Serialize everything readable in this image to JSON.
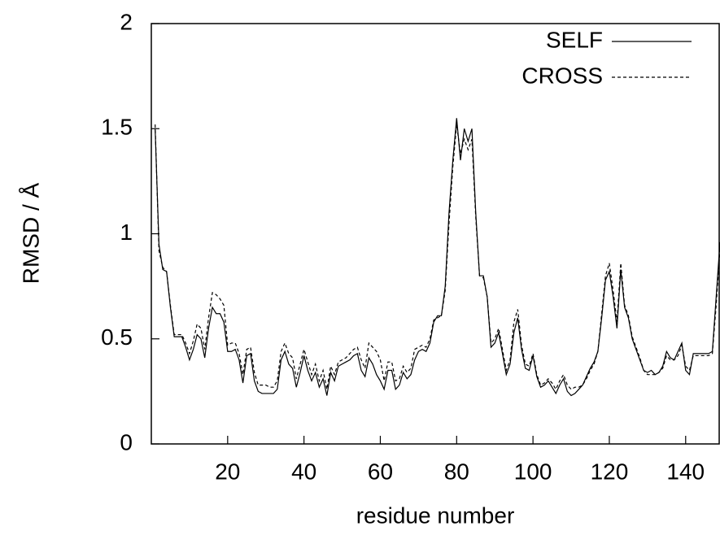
{
  "chart_data": {
    "type": "line",
    "x_label": "residue number",
    "y_label": "RMSD / Å",
    "x": [
      1,
      2,
      3,
      4,
      5,
      6,
      7,
      8,
      9,
      10,
      11,
      12,
      13,
      14,
      15,
      16,
      17,
      18,
      19,
      20,
      21,
      22,
      23,
      24,
      25,
      26,
      27,
      28,
      29,
      30,
      31,
      32,
      33,
      34,
      35,
      36,
      37,
      38,
      39,
      40,
      41,
      42,
      43,
      44,
      45,
      46,
      47,
      48,
      49,
      50,
      51,
      52,
      53,
      54,
      55,
      56,
      57,
      58,
      59,
      60,
      61,
      62,
      63,
      64,
      65,
      66,
      67,
      68,
      69,
      70,
      71,
      72,
      73,
      74,
      75,
      76,
      77,
      78,
      79,
      80,
      81,
      82,
      83,
      84,
      85,
      86,
      87,
      88,
      89,
      90,
      91,
      92,
      93,
      94,
      95,
      96,
      97,
      98,
      99,
      100,
      101,
      102,
      103,
      104,
      105,
      106,
      107,
      108,
      109,
      110,
      111,
      112,
      113,
      114,
      115,
      116,
      117,
      118,
      119,
      120,
      121,
      122,
      123,
      124,
      125,
      126,
      127,
      128,
      129,
      130,
      131,
      132,
      133,
      134,
      135,
      136,
      137,
      138,
      139,
      140,
      141,
      142,
      143,
      144,
      145,
      146,
      147,
      148,
      149
    ],
    "series": [
      {
        "name": "SELF",
        "color": "#000000",
        "dash": "solid",
        "values": [
          1.5,
          0.95,
          0.83,
          0.82,
          0.65,
          0.51,
          0.51,
          0.51,
          0.46,
          0.4,
          0.45,
          0.52,
          0.5,
          0.41,
          0.55,
          0.65,
          0.62,
          0.62,
          0.58,
          0.44,
          0.44,
          0.45,
          0.4,
          0.29,
          0.42,
          0.43,
          0.3,
          0.25,
          0.24,
          0.24,
          0.24,
          0.24,
          0.26,
          0.4,
          0.44,
          0.38,
          0.36,
          0.27,
          0.34,
          0.42,
          0.35,
          0.3,
          0.34,
          0.27,
          0.31,
          0.23,
          0.34,
          0.3,
          0.37,
          0.38,
          0.39,
          0.4,
          0.42,
          0.43,
          0.35,
          0.32,
          0.41,
          0.38,
          0.33,
          0.3,
          0.26,
          0.35,
          0.35,
          0.26,
          0.28,
          0.34,
          0.31,
          0.33,
          0.4,
          0.44,
          0.45,
          0.44,
          0.48,
          0.58,
          0.61,
          0.61,
          0.75,
          1.1,
          1.35,
          1.55,
          1.35,
          1.5,
          1.44,
          1.5,
          1.1,
          0.8,
          0.8,
          0.7,
          0.46,
          0.48,
          0.53,
          0.43,
          0.33,
          0.38,
          0.53,
          0.6,
          0.45,
          0.36,
          0.35,
          0.42,
          0.32,
          0.27,
          0.28,
          0.3,
          0.27,
          0.24,
          0.28,
          0.31,
          0.25,
          0.23,
          0.24,
          0.26,
          0.28,
          0.32,
          0.36,
          0.39,
          0.44,
          0.6,
          0.78,
          0.82,
          0.7,
          0.55,
          0.83,
          0.65,
          0.6,
          0.5,
          0.45,
          0.4,
          0.35,
          0.34,
          0.35,
          0.33,
          0.34,
          0.37,
          0.44,
          0.41,
          0.4,
          0.44,
          0.48,
          0.35,
          0.33,
          0.43,
          0.43,
          0.43,
          0.43,
          0.43,
          0.44,
          0.7,
          0.96
        ]
      },
      {
        "name": "CROSS",
        "color": "#000000",
        "dash": "dashed",
        "values": [
          1.52,
          0.92,
          0.84,
          0.82,
          0.66,
          0.52,
          0.52,
          0.52,
          0.48,
          0.43,
          0.49,
          0.57,
          0.55,
          0.45,
          0.6,
          0.72,
          0.71,
          0.69,
          0.66,
          0.47,
          0.48,
          0.48,
          0.43,
          0.33,
          0.45,
          0.46,
          0.34,
          0.28,
          0.28,
          0.28,
          0.27,
          0.27,
          0.3,
          0.44,
          0.48,
          0.43,
          0.41,
          0.31,
          0.38,
          0.45,
          0.39,
          0.33,
          0.38,
          0.3,
          0.35,
          0.26,
          0.37,
          0.33,
          0.39,
          0.4,
          0.41,
          0.43,
          0.45,
          0.46,
          0.4,
          0.36,
          0.48,
          0.46,
          0.44,
          0.4,
          0.3,
          0.39,
          0.39,
          0.3,
          0.31,
          0.37,
          0.34,
          0.36,
          0.45,
          0.46,
          0.47,
          0.46,
          0.5,
          0.59,
          0.6,
          0.61,
          0.73,
          1.05,
          1.32,
          1.52,
          1.38,
          1.45,
          1.4,
          1.45,
          1.08,
          0.8,
          0.79,
          0.7,
          0.48,
          0.5,
          0.55,
          0.45,
          0.35,
          0.4,
          0.58,
          0.64,
          0.47,
          0.38,
          0.37,
          0.43,
          0.33,
          0.28,
          0.29,
          0.31,
          0.29,
          0.26,
          0.3,
          0.33,
          0.28,
          0.26,
          0.27,
          0.27,
          0.28,
          0.31,
          0.35,
          0.38,
          0.44,
          0.62,
          0.8,
          0.86,
          0.73,
          0.58,
          0.86,
          0.66,
          0.61,
          0.51,
          0.46,
          0.41,
          0.35,
          0.33,
          0.33,
          0.33,
          0.34,
          0.36,
          0.42,
          0.4,
          0.4,
          0.42,
          0.47,
          0.37,
          0.35,
          0.42,
          0.42,
          0.42,
          0.42,
          0.42,
          0.43,
          0.66,
          0.93
        ]
      }
    ],
    "xlim": [
      0,
      149
    ],
    "xticks": [
      20,
      40,
      60,
      80,
      100,
      120,
      140
    ],
    "ylim": [
      0,
      2
    ],
    "yticks": [
      0,
      0.5,
      1,
      1.5,
      2
    ],
    "legend": "top-right"
  }
}
